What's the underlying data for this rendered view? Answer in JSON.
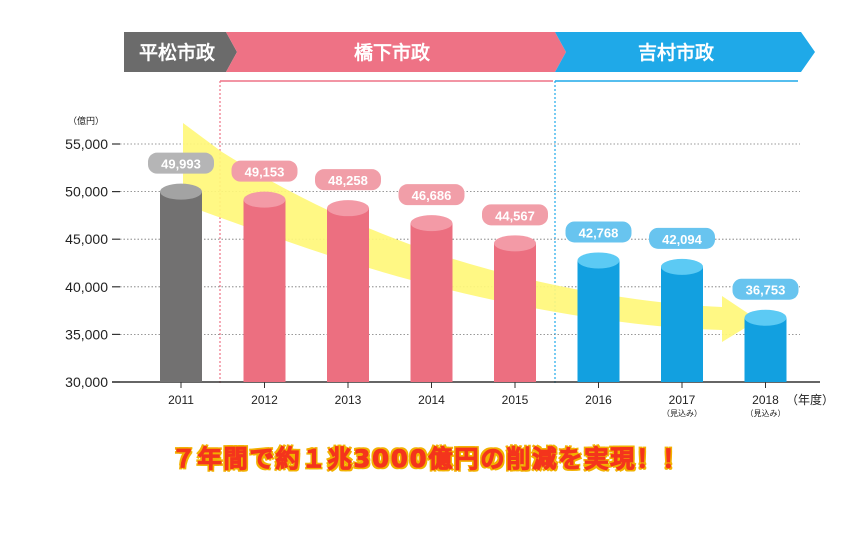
{
  "colors": {
    "hiramatsu": "#6b6b6b",
    "hashimoto": "#ee7285",
    "yoshimura": "#1fa9e8",
    "bar_gray": "#727171",
    "bar_pink": "#ec6f80",
    "bar_blue": "#12a0e0",
    "label_gray": "#b5b5b6",
    "label_pink": "#f19ea8",
    "label_blue": "#68c4ef",
    "arrow": "#fff77a",
    "slogan": "#f4341c",
    "slogan_outline": "#f2b100"
  },
  "administrations": [
    {
      "name": "平松市政",
      "color_key": "hiramatsu"
    },
    {
      "name": "橋下市政",
      "color_key": "hashimoto"
    },
    {
      "name": "吉村市政",
      "color_key": "yoshimura"
    }
  ],
  "chart_data": {
    "type": "bar",
    "title": "",
    "ylabel": "（億円）",
    "xlabel": "（年度）",
    "ylim": [
      30000,
      55000
    ],
    "yticks": [
      {
        "value": 30000,
        "label": "30,000"
      },
      {
        "value": 35000,
        "label": "35,000"
      },
      {
        "value": 40000,
        "label": "40,000"
      },
      {
        "value": 45000,
        "label": "45,000"
      },
      {
        "value": 50000,
        "label": "50,000"
      },
      {
        "value": 55000,
        "label": "55,000"
      }
    ],
    "categories": [
      "2011",
      "2012",
      "2013",
      "2014",
      "2015",
      "2016",
      "2017",
      "2018"
    ],
    "category_notes": [
      "",
      "",
      "",
      "",
      "",
      "",
      "（見込み）",
      "（見込み）"
    ],
    "values": [
      49993,
      49153,
      48258,
      46686,
      44567,
      42768,
      42094,
      36753
    ],
    "value_labels": [
      "49,993",
      "49,153",
      "48,258",
      "46,686",
      "44,567",
      "42,768",
      "42,094",
      "36,753"
    ],
    "administration": [
      "hiramatsu",
      "hashimoto",
      "hashimoto",
      "hashimoto",
      "hashimoto",
      "yoshimura",
      "yoshimura",
      "yoshimura"
    ],
    "grid": true
  },
  "slogan": "７年間で約１兆3000億円の削減を実現！！"
}
